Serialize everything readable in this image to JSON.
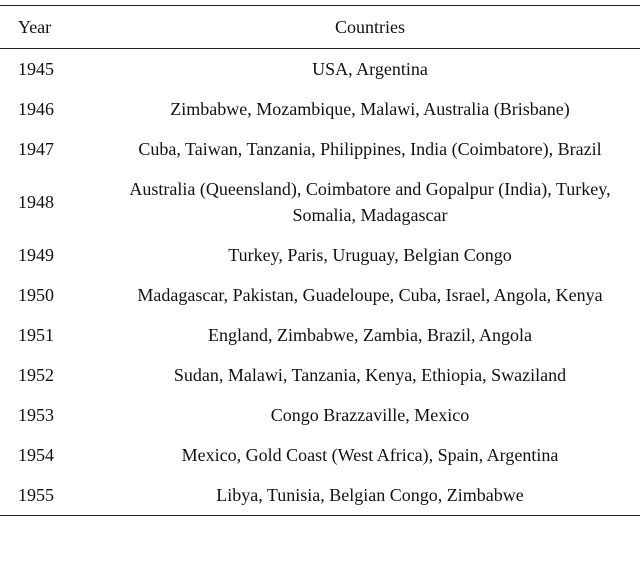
{
  "table": {
    "header": [
      "Year",
      "Countries"
    ],
    "rows": [
      [
        "1945",
        "USA, Argentina"
      ],
      [
        "1946",
        "Zimbabwe, Mozambique, Malawi, Australia (Brisbane)"
      ],
      [
        "1947",
        "Cuba, Taiwan, Tanzania, Philippines, India (Coimbatore), Brazil"
      ],
      [
        "1948",
        "Australia (Queensland), Coimbatore and Gopalpur (India), Turkey, Somalia, Madagascar"
      ],
      [
        "1949",
        "Turkey, Paris, Uruguay, Belgian Congo"
      ],
      [
        "1950",
        "Madagascar, Pakistan, Guadeloupe, Cuba, Israel, Angola, Kenya"
      ],
      [
        "1951",
        "England, Zimbabwe, Zambia, Brazil, Angola"
      ],
      [
        "1952",
        "Sudan, Malawi, Tanzania, Kenya, Ethiopia, Swaziland"
      ],
      [
        "1953",
        "Congo Brazzaville, Mexico"
      ],
      [
        "1954",
        "Mexico, Gold Coast (West Africa), Spain, Argentina"
      ],
      [
        "1955",
        "Libya, Tunisia, Belgian Congo, Zimbabwe"
      ]
    ]
  }
}
